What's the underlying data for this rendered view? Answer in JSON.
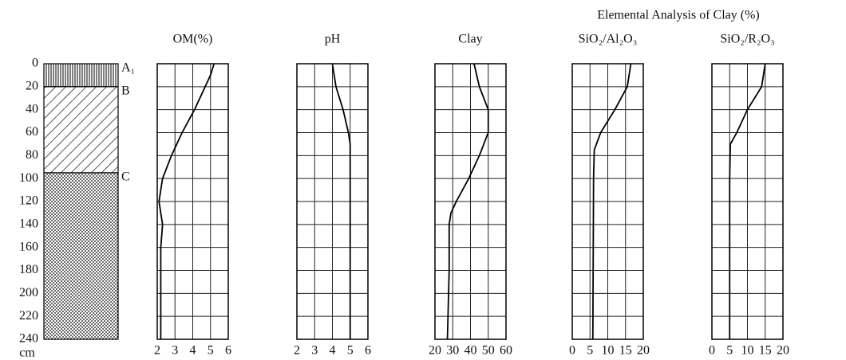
{
  "chart_data": {
    "type": "profile",
    "group_title": "Elemental Analysis of Clay (%)",
    "y_unit": "cm",
    "ylim": [
      0,
      240
    ],
    "yticks": [
      0,
      20,
      40,
      60,
      80,
      100,
      120,
      140,
      160,
      180,
      200,
      220,
      240
    ],
    "grid": true,
    "color": "#000000",
    "horizons": [
      {
        "label": "A₁",
        "top": 0,
        "bottom": 20,
        "pattern": "vertical"
      },
      {
        "label": "B",
        "top": 20,
        "bottom": 95,
        "pattern": "diagonal"
      },
      {
        "label": "C",
        "top": 95,
        "bottom": 240,
        "pattern": "dots"
      }
    ],
    "panels": [
      {
        "title": "OM(%)",
        "xlim": [
          2,
          6
        ],
        "xticks": [
          2,
          3,
          4,
          5,
          6
        ],
        "depth": [
          0,
          10,
          20,
          40,
          60,
          80,
          100,
          120,
          140,
          160,
          200,
          240
        ],
        "values": [
          5.2,
          5.0,
          4.7,
          4.1,
          3.4,
          2.8,
          2.3,
          2.1,
          2.3,
          2.2,
          2.2,
          2.2
        ]
      },
      {
        "title": "pH",
        "xlim": [
          2,
          6
        ],
        "xticks": [
          2,
          3,
          4,
          5,
          6
        ],
        "depth": [
          0,
          20,
          40,
          60,
          70,
          100,
          240
        ],
        "values": [
          4.0,
          4.2,
          4.6,
          4.9,
          5.0,
          5.0,
          5.0
        ]
      },
      {
        "title": "Clay",
        "xlim": [
          20,
          60
        ],
        "xticks": [
          20,
          30,
          40,
          50,
          60
        ],
        "depth": [
          0,
          20,
          40,
          60,
          80,
          100,
          120,
          130,
          140,
          180,
          240
        ],
        "values": [
          42,
          45,
          50,
          50,
          45,
          39,
          32,
          29,
          28,
          28,
          27
        ]
      },
      {
        "title": "SiO₂/Al₂O₃",
        "xlim": [
          0,
          20
        ],
        "xticks": [
          0,
          5,
          10,
          15,
          20
        ],
        "depth": [
          0,
          20,
          40,
          60,
          75,
          100,
          240
        ],
        "values": [
          16.5,
          15.5,
          12,
          8,
          6.2,
          6,
          5.8
        ]
      },
      {
        "title": "SiO₂/R₂O₃",
        "xlim": [
          0,
          20
        ],
        "xticks": [
          0,
          5,
          10,
          15,
          20
        ],
        "depth": [
          0,
          20,
          40,
          60,
          70,
          100,
          240
        ],
        "values": [
          15,
          14,
          10,
          7,
          5.2,
          5.0,
          5.0
        ]
      }
    ]
  }
}
